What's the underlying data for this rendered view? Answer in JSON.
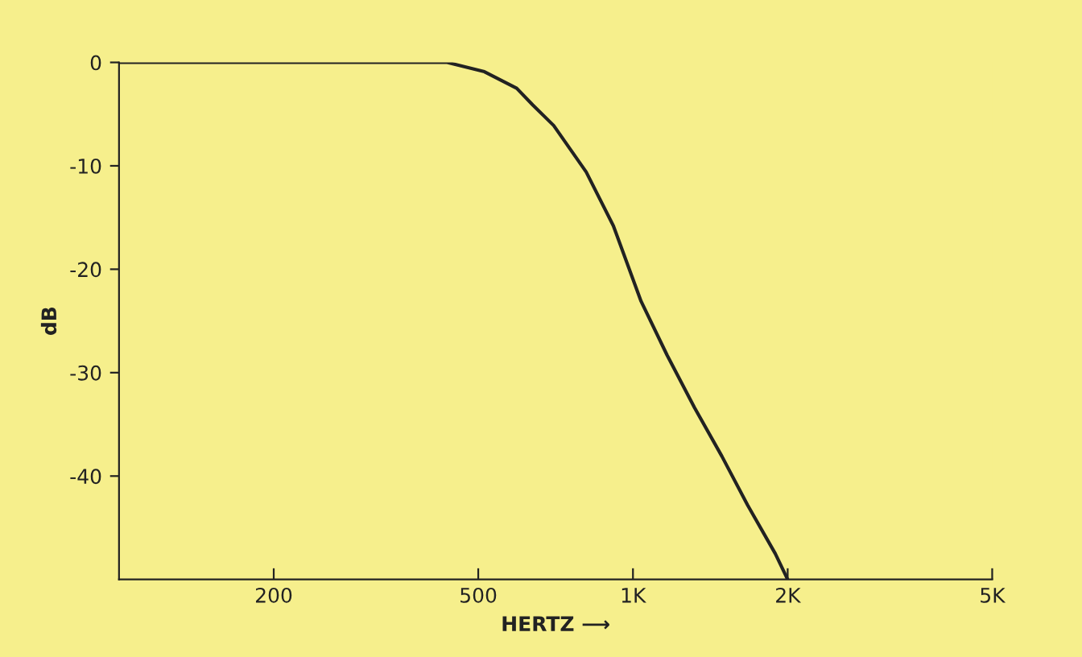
{
  "chart_data": {
    "type": "line",
    "xlabel": "HERTZ ⟶",
    "ylabel": "dB",
    "log": "x",
    "x": [
      100,
      300,
      435,
      514,
      594,
      638,
      701,
      811,
      916,
      1037,
      1165,
      1318,
      1490,
      1671,
      1892,
      2000
    ],
    "series": [
      {
        "color": "#222222",
        "values": [
          0,
          0,
          0,
          -0.9,
          -2.5,
          -4.1,
          -6.1,
          -10.6,
          -15.8,
          -23.1,
          -28.3,
          -33.4,
          -38.1,
          -42.8,
          -47.5,
          -50
        ]
      }
    ],
    "xlim": [
      100,
      5000
    ],
    "xticks": [
      200,
      500,
      {
        "value": 1000,
        "label": "1K"
      },
      {
        "value": 2000,
        "label": "2K"
      },
      {
        "value": 5000,
        "label": "5K"
      }
    ],
    "ylim": [
      -50,
      0
    ],
    "yticks": [
      0,
      -10,
      -20,
      -30,
      -40
    ],
    "grid": false,
    "marker": "none",
    "line_style": "solid"
  }
}
